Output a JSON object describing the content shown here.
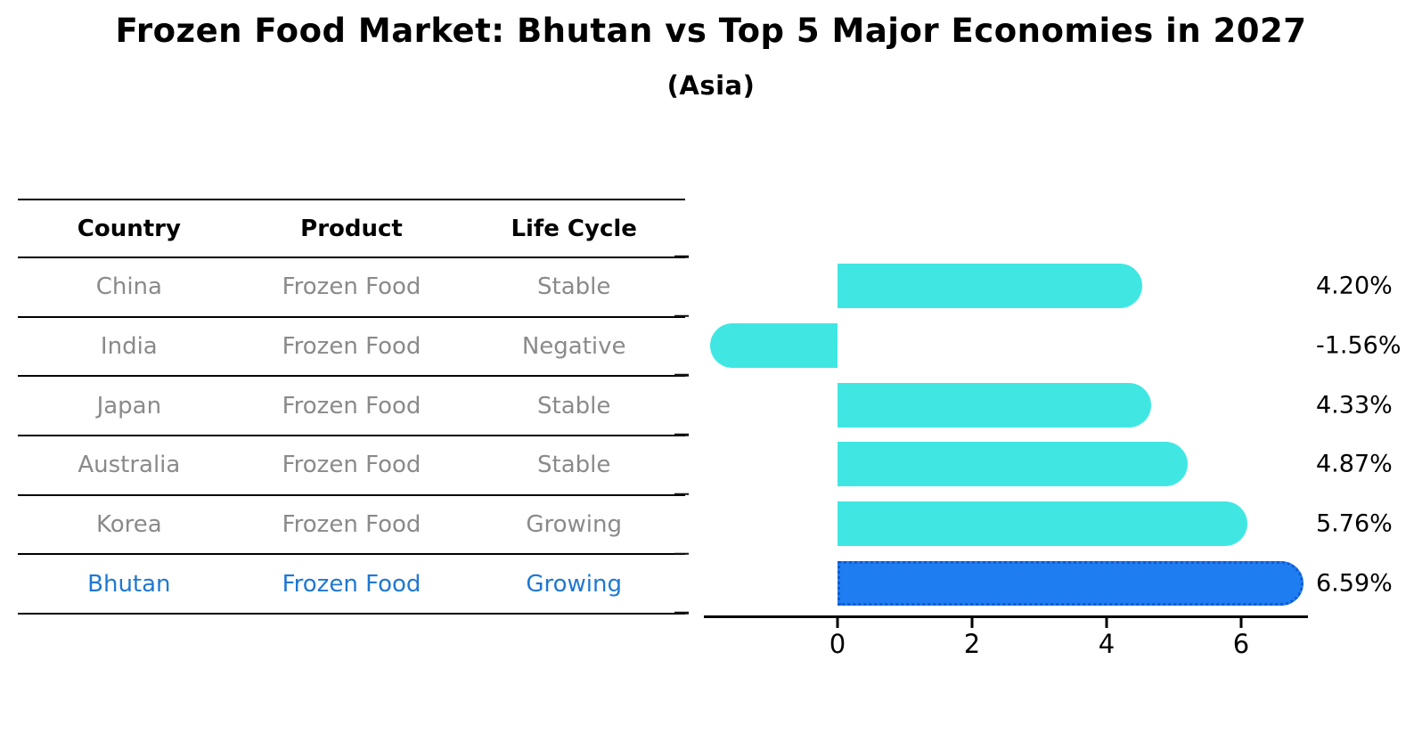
{
  "title": "Frozen Food Market: Bhutan vs Top 5 Major Economies in 2027",
  "subtitle": "(Asia)",
  "table": {
    "columns": [
      "Country",
      "Product",
      "Life Cycle"
    ],
    "rows": [
      {
        "country": "China",
        "product": "Frozen Food",
        "life_cycle": "Stable",
        "highlight": false
      },
      {
        "country": "India",
        "product": "Frozen Food",
        "life_cycle": "Negative",
        "highlight": false
      },
      {
        "country": "Japan",
        "product": "Frozen Food",
        "life_cycle": "Stable",
        "highlight": false
      },
      {
        "country": "Australia",
        "product": "Frozen Food",
        "life_cycle": "Stable",
        "highlight": false
      },
      {
        "country": "Korea",
        "product": "Frozen Food",
        "life_cycle": "Growing",
        "highlight": false
      },
      {
        "country": "Bhutan",
        "product": "Frozen Food",
        "life_cycle": "Growing",
        "highlight": true
      }
    ]
  },
  "chart_data": {
    "type": "bar",
    "orientation": "horizontal",
    "categories": [
      "China",
      "India",
      "Japan",
      "Australia",
      "Korea",
      "Bhutan"
    ],
    "values": [
      4.2,
      -1.56,
      4.33,
      4.87,
      5.76,
      6.59
    ],
    "bar_labels": [
      "4.20%",
      "-1.56%",
      "4.33%",
      "4.87%",
      "5.76%",
      "6.59%"
    ],
    "x_tick_labels": [
      "0",
      "2",
      "4",
      "6"
    ],
    "x_tick_values": [
      0,
      2,
      4,
      6
    ],
    "xlim": [
      -2,
      7
    ],
    "grid": false,
    "legend": "none",
    "highlight_index": 5,
    "colors": {
      "bar": "#40e7e2",
      "highlight_bar": "#1e7df0",
      "highlight_bar_border": "#1459ce",
      "table_row_text": "#8a8a8a",
      "highlight_row_text": "#1e78d2",
      "axis_text": "#000000"
    }
  }
}
